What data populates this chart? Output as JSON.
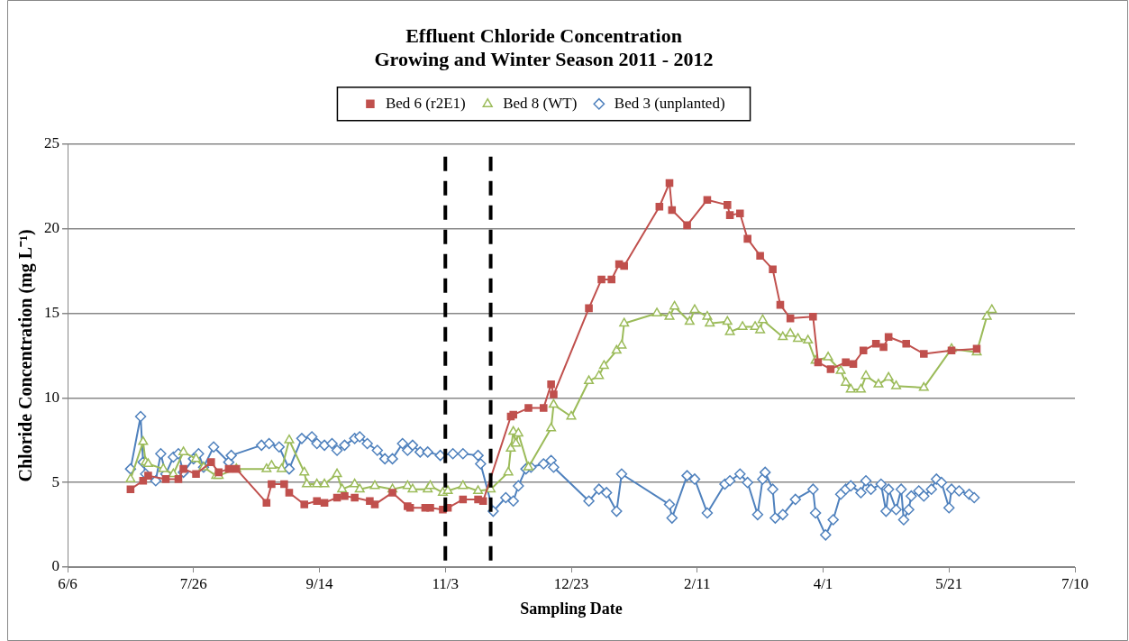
{
  "chart_data": {
    "type": "line",
    "title": "Effluent Chloride Concentration\nGrowing and Winter Season 2011 - 2012",
    "xlabel": "Sampling Date",
    "ylabel": "Chloride Concentration (mg L⁻¹)",
    "xlim": [
      "2011-06-06",
      "2012-07-10"
    ],
    "xticks": [
      {
        "value": "2011-06-06",
        "label": "6/6"
      },
      {
        "value": "2011-07-26",
        "label": "7/26"
      },
      {
        "value": "2011-09-14",
        "label": "9/14"
      },
      {
        "value": "2011-11-03",
        "label": "11/3"
      },
      {
        "value": "2011-12-23",
        "label": "12/23"
      },
      {
        "value": "2012-02-11",
        "label": "2/11"
      },
      {
        "value": "2012-04-01",
        "label": "4/1"
      },
      {
        "value": "2012-05-21",
        "label": "5/21"
      },
      {
        "value": "2012-07-10",
        "label": "7/10"
      }
    ],
    "ylim": [
      0,
      25
    ],
    "yticks": [
      0,
      5,
      10,
      15,
      20,
      25
    ],
    "grid": "y",
    "legend": "top",
    "line_style": "solid",
    "ref_lines": [
      {
        "axis": "x",
        "value": "2011-11-03",
        "color": "#000000",
        "line_style": "dashed"
      },
      {
        "axis": "x",
        "value": "2011-11-21",
        "color": "#000000",
        "line_style": "dashed"
      }
    ],
    "series": [
      {
        "name": "Bed 6 (r2E1)",
        "color": "#c0504d",
        "marker": "square",
        "x": [
          "2011-07-01",
          "2011-07-06",
          "2011-07-08",
          "2011-07-15",
          "2011-07-20",
          "2011-07-22",
          "2011-07-27",
          "2011-08-02",
          "2011-08-05",
          "2011-08-09",
          "2011-08-12",
          "2011-08-24",
          "2011-08-26",
          "2011-08-31",
          "2011-09-02",
          "2011-09-08",
          "2011-09-13",
          "2011-09-16",
          "2011-09-21",
          "2011-09-24",
          "2011-09-28",
          "2011-10-04",
          "2011-10-06",
          "2011-10-13",
          "2011-10-19",
          "2011-10-20",
          "2011-10-26",
          "2011-10-28",
          "2011-11-02",
          "2011-11-04",
          "2011-11-10",
          "2011-11-16",
          "2011-11-18",
          "2011-11-29",
          "2011-11-30",
          "2011-12-06",
          "2011-12-12",
          "2011-12-15",
          "2011-12-16",
          "2011-12-30",
          "2012-01-04",
          "2012-01-08",
          "2012-01-11",
          "2012-01-13",
          "2012-01-27",
          "2012-01-31",
          "2012-02-01",
          "2012-02-07",
          "2012-02-15",
          "2012-02-23",
          "2012-02-24",
          "2012-02-28",
          "2012-03-02",
          "2012-03-07",
          "2012-03-12",
          "2012-03-15",
          "2012-03-19",
          "2012-03-28",
          "2012-03-30",
          "2012-04-04",
          "2012-04-10",
          "2012-04-13",
          "2012-04-17",
          "2012-04-22",
          "2012-04-25",
          "2012-04-27",
          "2012-05-04",
          "2012-05-11",
          "2012-05-22",
          "2012-06-01"
        ],
        "values": [
          4.6,
          5.1,
          5.4,
          5.2,
          5.2,
          5.8,
          5.5,
          6.2,
          5.6,
          5.8,
          5.8,
          3.8,
          4.9,
          4.9,
          4.4,
          3.7,
          3.9,
          3.8,
          4.1,
          4.2,
          4.1,
          3.9,
          3.7,
          4.4,
          3.6,
          3.5,
          3.5,
          3.5,
          3.4,
          3.5,
          4.0,
          4.0,
          3.9,
          8.9,
          9.0,
          9.4,
          9.4,
          10.8,
          10.2,
          15.3,
          17.0,
          17.0,
          17.9,
          17.8,
          21.3,
          22.7,
          21.1,
          20.2,
          21.7,
          21.4,
          20.8,
          20.9,
          19.4,
          18.4,
          17.6,
          15.5,
          14.7,
          14.8,
          12.1,
          11.7,
          12.1,
          12.0,
          12.8,
          13.2,
          13.0,
          13.6,
          13.2,
          12.6,
          12.8,
          12.9
        ]
      },
      {
        "name": "Bed 8 (WT)",
        "color": "#9bbb59",
        "marker": "triangle",
        "x": [
          "2011-07-01",
          "2011-07-06",
          "2011-07-07",
          "2011-07-08",
          "2011-07-14",
          "2011-07-18",
          "2011-07-22",
          "2011-07-27",
          "2011-07-30",
          "2011-08-04",
          "2011-08-05",
          "2011-08-12",
          "2011-08-24",
          "2011-08-26",
          "2011-08-30",
          "2011-09-02",
          "2011-09-08",
          "2011-09-09",
          "2011-09-13",
          "2011-09-16",
          "2011-09-21",
          "2011-09-23",
          "2011-09-28",
          "2011-09-30",
          "2011-10-06",
          "2011-10-13",
          "2011-10-19",
          "2011-10-21",
          "2011-10-27",
          "2011-10-28",
          "2011-11-02",
          "2011-11-04",
          "2011-11-10",
          "2011-11-16",
          "2011-11-21",
          "2011-11-28",
          "2011-11-29",
          "2011-11-30",
          "2011-12-01",
          "2011-12-02",
          "2011-12-06",
          "2011-12-15",
          "2011-12-16",
          "2011-12-23",
          "2011-12-30",
          "2012-01-03",
          "2012-01-05",
          "2012-01-10",
          "2012-01-12",
          "2012-01-13",
          "2012-01-26",
          "2012-01-31",
          "2012-02-02",
          "2012-02-08",
          "2012-02-10",
          "2012-02-15",
          "2012-02-16",
          "2012-02-23",
          "2012-02-24",
          "2012-02-29",
          "2012-03-05",
          "2012-03-07",
          "2012-03-08",
          "2012-03-16",
          "2012-03-19",
          "2012-03-22",
          "2012-03-26",
          "2012-03-29",
          "2012-04-03",
          "2012-04-08",
          "2012-04-10",
          "2012-04-12",
          "2012-04-16",
          "2012-04-18",
          "2012-04-23",
          "2012-04-27",
          "2012-04-30",
          "2012-05-11",
          "2012-05-22",
          "2012-06-01",
          "2012-06-05",
          "2012-06-07"
        ],
        "values": [
          5.2,
          7.4,
          6.2,
          6.1,
          5.8,
          5.5,
          6.8,
          6.4,
          5.9,
          5.4,
          5.4,
          5.8,
          5.8,
          6.0,
          5.8,
          7.5,
          5.6,
          4.9,
          4.9,
          4.9,
          5.5,
          4.6,
          4.9,
          4.6,
          4.8,
          4.6,
          4.8,
          4.6,
          4.6,
          4.8,
          4.4,
          4.5,
          4.8,
          4.5,
          4.6,
          5.6,
          7.0,
          8.0,
          7.3,
          7.9,
          5.9,
          8.2,
          9.6,
          8.9,
          11.0,
          11.3,
          11.9,
          12.8,
          13.1,
          14.4,
          15.0,
          14.8,
          15.4,
          14.5,
          15.2,
          14.8,
          14.4,
          14.5,
          13.9,
          14.2,
          14.2,
          14.0,
          14.6,
          13.6,
          13.8,
          13.5,
          13.4,
          12.2,
          12.4,
          11.6,
          10.9,
          10.5,
          10.5,
          11.3,
          10.8,
          11.2,
          10.7,
          10.6,
          12.9,
          12.7,
          14.8,
          15.2
        ]
      },
      {
        "name": "Bed 3 (unplanted)",
        "color": "#4f81bd",
        "marker": "diamond",
        "x": [
          "2011-07-01",
          "2011-07-05",
          "2011-07-06",
          "2011-07-07",
          "2011-07-11",
          "2011-07-13",
          "2011-07-15",
          "2011-07-18",
          "2011-07-20",
          "2011-07-22",
          "2011-07-26",
          "2011-07-28",
          "2011-07-30",
          "2011-08-03",
          "2011-08-09",
          "2011-08-10",
          "2011-08-22",
          "2011-08-25",
          "2011-08-29",
          "2011-09-02",
          "2011-09-07",
          "2011-09-11",
          "2011-09-13",
          "2011-09-16",
          "2011-09-19",
          "2011-09-21",
          "2011-09-24",
          "2011-09-28",
          "2011-09-30",
          "2011-10-03",
          "2011-10-07",
          "2011-10-10",
          "2011-10-13",
          "2011-10-17",
          "2011-10-19",
          "2011-10-21",
          "2011-10-24",
          "2011-10-27",
          "2011-11-01",
          "2011-11-06",
          "2011-11-10",
          "2011-11-16",
          "2011-11-17",
          "2011-11-22",
          "2011-11-27",
          "2011-11-30",
          "2011-12-02",
          "2011-12-05",
          "2011-12-07",
          "2011-12-12",
          "2011-12-15",
          "2011-12-16",
          "2011-12-30",
          "2012-01-03",
          "2012-01-06",
          "2012-01-10",
          "2012-01-12",
          "2012-01-31",
          "2012-02-01",
          "2012-02-07",
          "2012-02-10",
          "2012-02-15",
          "2012-02-22",
          "2012-02-24",
          "2012-02-28",
          "2012-03-02",
          "2012-03-06",
          "2012-03-08",
          "2012-03-09",
          "2012-03-12",
          "2012-03-13",
          "2012-03-16",
          "2012-03-21",
          "2012-03-28",
          "2012-03-29",
          "2012-04-02",
          "2012-04-05",
          "2012-04-08",
          "2012-04-10",
          "2012-04-12",
          "2012-04-16",
          "2012-04-18",
          "2012-04-20",
          "2012-04-24",
          "2012-04-26",
          "2012-04-27",
          "2012-04-30",
          "2012-05-02",
          "2012-05-03",
          "2012-05-05",
          "2012-05-06",
          "2012-05-09",
          "2012-05-11",
          "2012-05-14",
          "2012-05-16",
          "2012-05-18",
          "2012-05-21",
          "2012-05-22",
          "2012-05-25",
          "2012-05-29",
          "2012-05-31"
        ],
        "values": [
          5.8,
          8.9,
          6.2,
          5.5,
          5.1,
          6.7,
          5.5,
          6.5,
          6.7,
          5.6,
          6.4,
          6.7,
          5.9,
          7.1,
          6.2,
          6.6,
          7.2,
          7.3,
          7.1,
          5.8,
          7.6,
          7.7,
          7.3,
          7.2,
          7.3,
          6.9,
          7.2,
          7.6,
          7.7,
          7.3,
          6.9,
          6.4,
          6.4,
          7.3,
          6.9,
          7.2,
          6.8,
          6.8,
          6.6,
          6.7,
          6.7,
          6.6,
          6.1,
          3.3,
          4.1,
          3.9,
          4.8,
          5.8,
          5.9,
          6.1,
          6.3,
          5.9,
          3.9,
          4.6,
          4.4,
          3.3,
          5.5,
          3.7,
          2.9,
          5.4,
          5.2,
          3.2,
          4.9,
          5.1,
          5.5,
          5.0,
          3.1,
          5.2,
          5.6,
          4.6,
          2.9,
          3.1,
          4.0,
          4.6,
          3.2,
          1.9,
          2.8,
          4.3,
          4.6,
          4.8,
          4.4,
          5.1,
          4.6,
          4.9,
          3.3,
          4.6,
          3.4,
          4.6,
          2.8,
          3.4,
          4.2,
          4.5,
          4.2,
          4.6,
          5.2,
          5.0,
          3.5,
          4.6,
          4.5,
          4.3,
          4.1
        ]
      }
    ]
  }
}
